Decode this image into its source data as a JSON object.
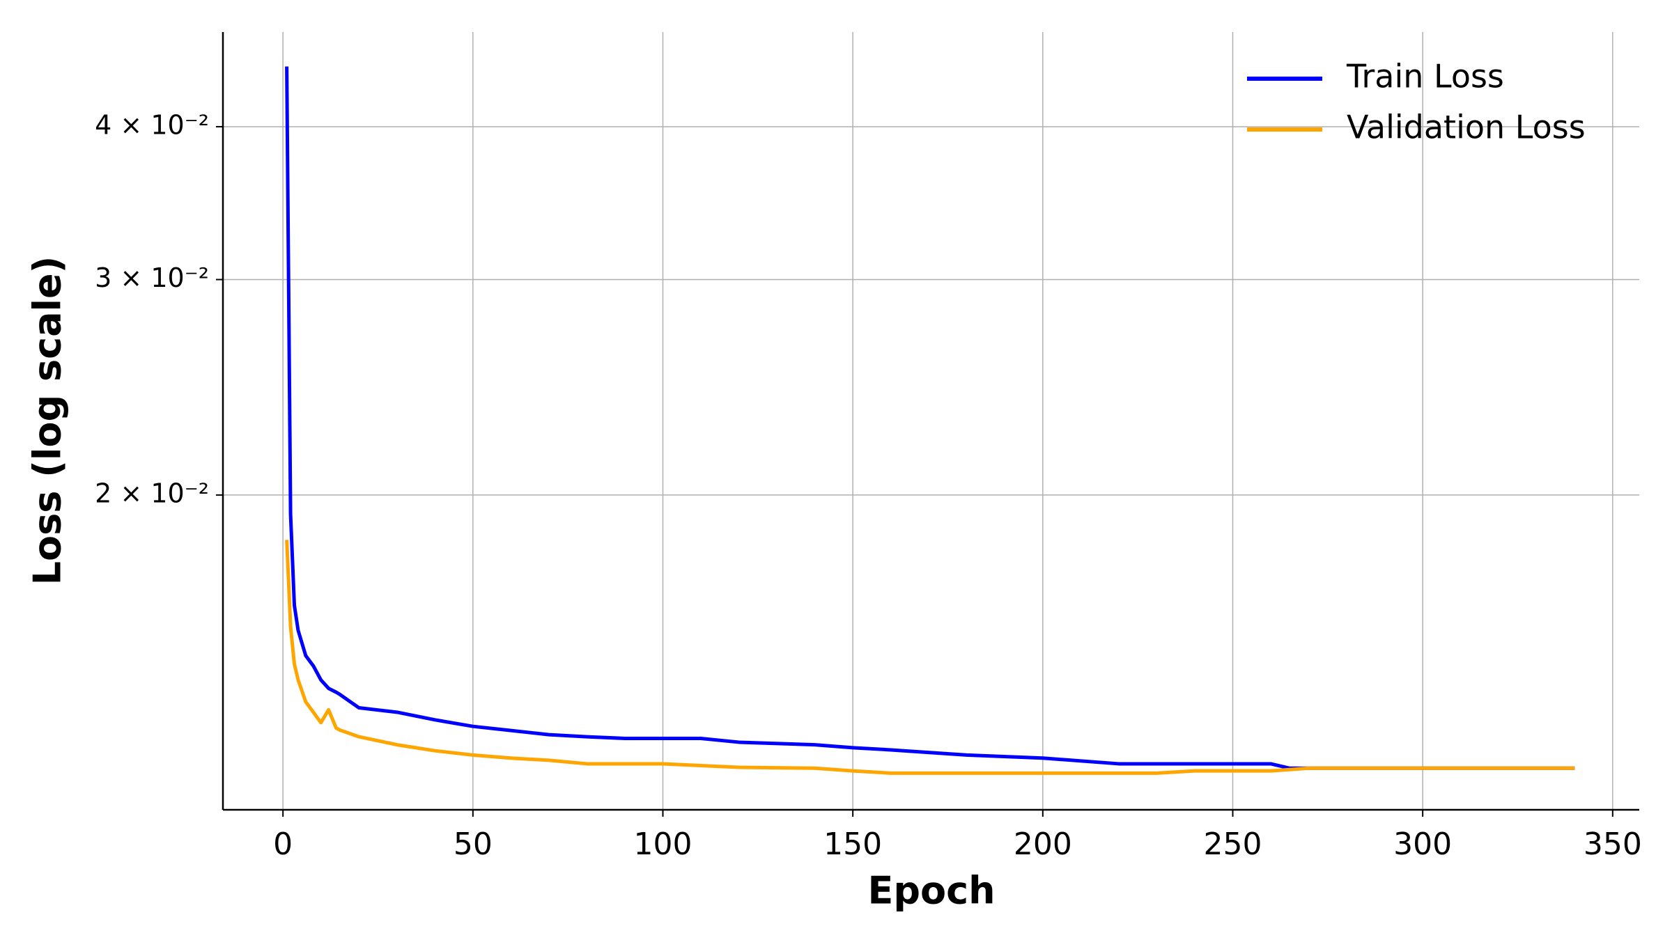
{
  "chart_data": {
    "type": "line",
    "xlabel": "Epoch",
    "ylabel": "Loss (log scale)",
    "x": [
      1,
      2,
      3,
      4,
      6,
      8,
      10,
      12,
      14,
      15,
      20,
      30,
      40,
      50,
      60,
      70,
      80,
      90,
      100,
      110,
      120,
      140,
      150,
      160,
      180,
      200,
      220,
      230,
      240,
      260,
      265,
      270,
      280,
      300,
      320,
      340
    ],
    "series": [
      {
        "name": "Train Loss",
        "color": "#0000ff",
        "values": [
          0.0448,
          0.0193,
          0.01625,
          0.0155,
          0.01478,
          0.0145,
          0.01412,
          0.0139,
          0.0138,
          0.01374,
          0.0134,
          0.01329,
          0.0131,
          0.01294,
          0.01284,
          0.01274,
          0.01269,
          0.01265,
          0.01265,
          0.01265,
          0.01256,
          0.0125,
          0.01243,
          0.01238,
          0.01226,
          0.01219,
          0.01206,
          0.01206,
          0.01206,
          0.01206,
          0.01196,
          0.01196,
          0.01196,
          0.01196,
          0.01196,
          0.01196
        ]
      },
      {
        "name": "Validation Loss",
        "color": "#ffa500",
        "values": [
          0.01838,
          0.01561,
          0.01455,
          0.01412,
          0.01355,
          0.01329,
          0.01303,
          0.01335,
          0.0129,
          0.01285,
          0.01269,
          0.0125,
          0.01236,
          0.01226,
          0.01219,
          0.01214,
          0.01206,
          0.01206,
          0.01206,
          0.01202,
          0.01198,
          0.01196,
          0.0119,
          0.01185,
          0.01185,
          0.01185,
          0.01185,
          0.01185,
          0.0119,
          0.0119,
          0.01193,
          0.01196,
          0.01196,
          0.01196,
          0.01196,
          0.01196
        ]
      }
    ],
    "xlim": [
      -15.8,
      357
    ],
    "xticks": [
      0,
      50,
      100,
      150,
      200,
      250,
      300,
      350
    ],
    "ylim": [
      0.01106,
      0.0478
    ],
    "log_y": true,
    "yticks": [
      {
        "value": 0.02,
        "label": "2 × 10⁻²"
      },
      {
        "value": 0.03,
        "label": "3 × 10⁻²"
      },
      {
        "value": 0.04,
        "label": "4 × 10⁻²"
      }
    ],
    "grid": true,
    "legend": "upper right"
  }
}
